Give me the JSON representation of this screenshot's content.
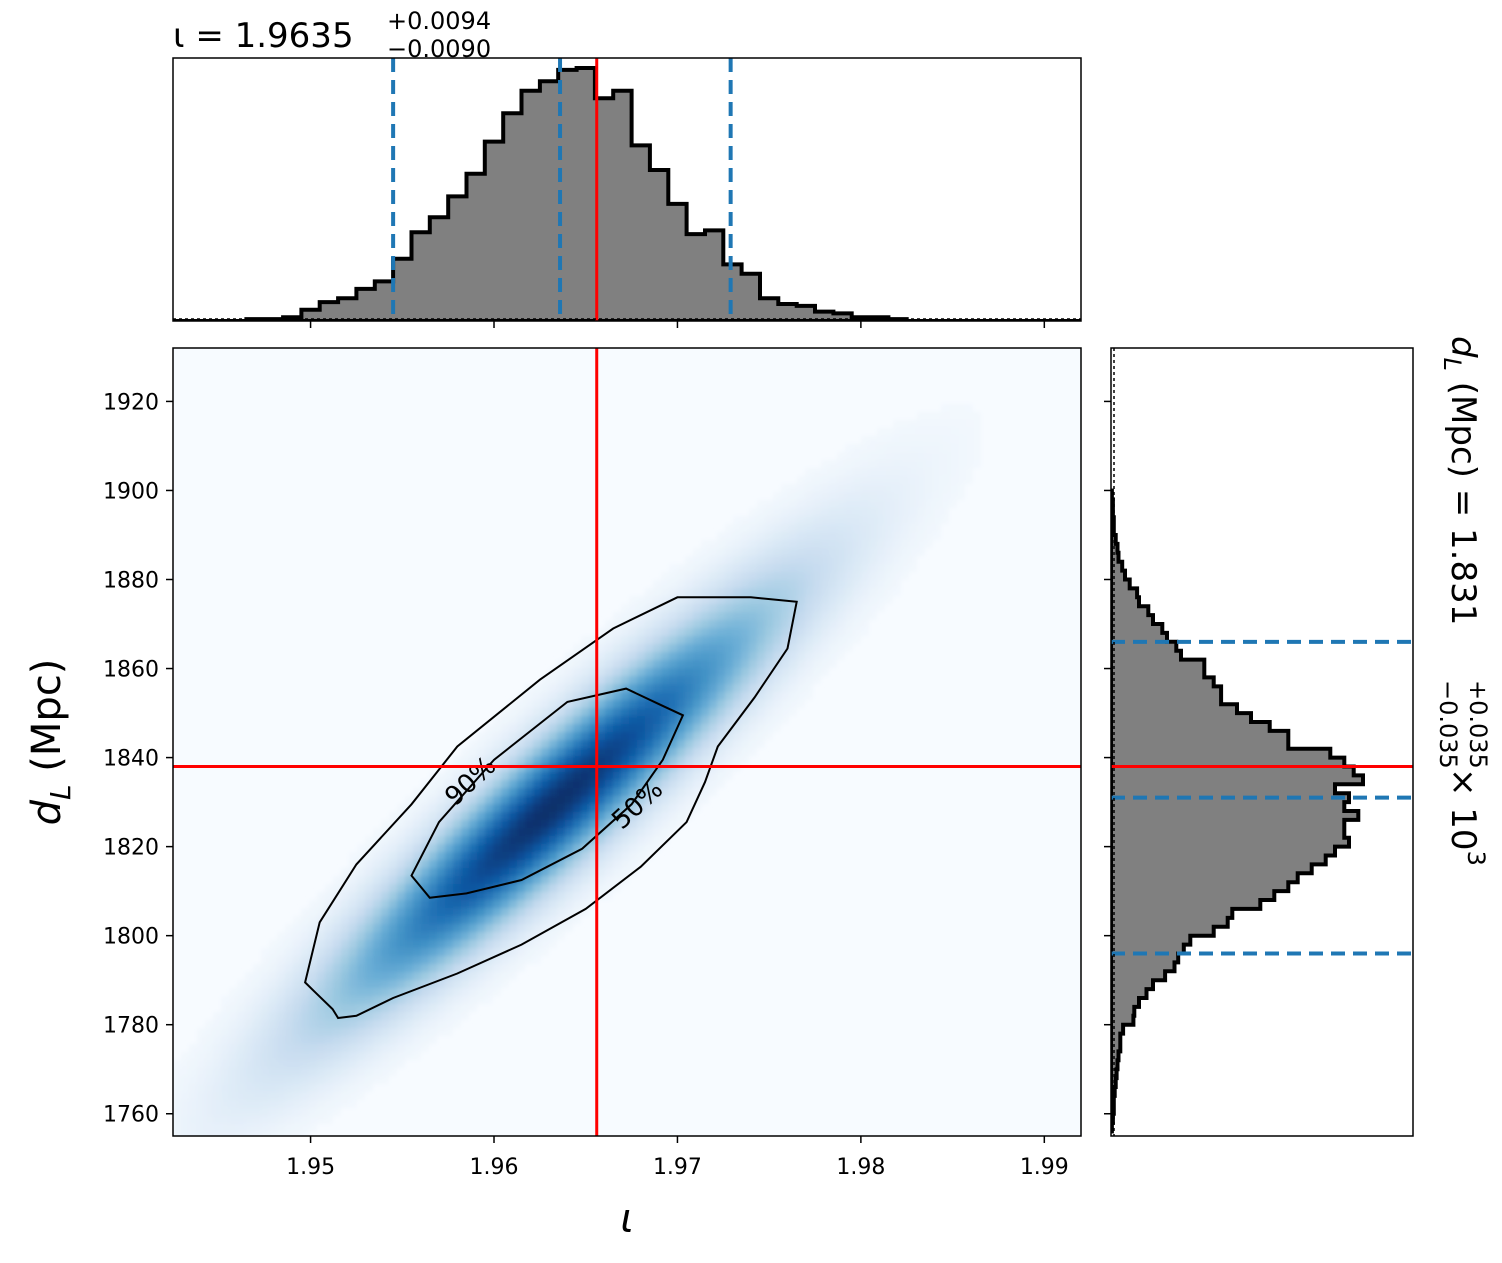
{
  "chart_data": {
    "type": "corner",
    "x_param": {
      "axis_label": "ι",
      "range": [
        1.9425,
        1.992
      ],
      "ticks": [
        1.95,
        1.96,
        1.97,
        1.98,
        1.99
      ],
      "tick_labels": [
        "1.95",
        "1.96",
        "1.97",
        "1.98",
        "1.99"
      ],
      "title_prefix": "ι = 1.9635",
      "title_plus": "+0.0094",
      "title_minus": "−0.0090",
      "quantiles": [
        1.9545,
        1.9636,
        1.9729
      ],
      "injected": 1.9656,
      "hist_edges": [
        1.9425,
        1.9435,
        1.9445,
        1.9455,
        1.9465,
        1.9475,
        1.9485,
        1.9495,
        1.9505,
        1.9515,
        1.9525,
        1.9535,
        1.9545,
        1.9555,
        1.9565,
        1.9575,
        1.9585,
        1.9595,
        1.9605,
        1.9615,
        1.9625,
        1.9635,
        1.9645,
        1.9655,
        1.9665,
        1.9675,
        1.9685,
        1.9695,
        1.9705,
        1.9715,
        1.9725,
        1.9735,
        1.9745,
        1.9755,
        1.9765,
        1.9775,
        1.9785,
        1.9795,
        1.9805,
        1.9815,
        1.9825,
        1.9835,
        1.9845,
        1.9855,
        1.9865,
        1.9875,
        1.9885,
        1.9895,
        1.9905,
        1.9915,
        1.992
      ],
      "hist_counts": [
        0,
        0,
        0,
        0,
        1,
        1,
        2,
        6,
        10,
        12,
        17,
        21,
        33,
        47,
        55,
        66,
        78,
        95,
        110,
        122,
        127,
        133,
        134,
        118,
        122,
        93,
        80,
        62,
        46,
        48,
        30,
        25,
        12,
        9,
        8,
        5,
        4,
        2,
        2,
        1,
        0,
        0,
        0,
        0,
        0,
        0,
        0,
        0,
        0,
        0
      ]
    },
    "y_param": {
      "axis_label": "d",
      "axis_label_sub": "L",
      "axis_label_unit": "(Mpc)",
      "range": [
        1755,
        1932
      ],
      "ticks": [
        1760,
        1780,
        1800,
        1820,
        1840,
        1860,
        1880,
        1900,
        1920
      ],
      "tick_labels": [
        "1760",
        "1780",
        "1800",
        "1820",
        "1840",
        "1860",
        "1880",
        "1900",
        "1920"
      ],
      "title_prefix": "(Mpc) = 1.831",
      "title_plus": "+0.035",
      "title_minus": "−0.035",
      "title_suffix": "× 10",
      "title_exp": "3",
      "quantiles": [
        1796,
        1831,
        1866
      ],
      "injected": 1838,
      "hist_edges": [
        1756,
        1758,
        1760,
        1762,
        1764,
        1766,
        1768,
        1770,
        1772,
        1774,
        1776,
        1778,
        1780,
        1782,
        1784,
        1786,
        1788,
        1790,
        1792,
        1794,
        1796,
        1798,
        1800,
        1802,
        1804,
        1806,
        1808,
        1810,
        1812,
        1814,
        1816,
        1818,
        1820,
        1822,
        1824,
        1826,
        1828,
        1830,
        1832,
        1834,
        1836,
        1838,
        1840,
        1842,
        1844,
        1846,
        1848,
        1850,
        1852,
        1854,
        1856,
        1858,
        1860,
        1862,
        1864,
        1866,
        1868,
        1870,
        1872,
        1874,
        1876,
        1878,
        1880,
        1882,
        1884,
        1886,
        1888,
        1890,
        1892,
        1894,
        1896,
        1898,
        1900
      ],
      "hist_counts": [
        1,
        2,
        3,
        3,
        4,
        5,
        6,
        7,
        8,
        10,
        10,
        13,
        24,
        25,
        30,
        38,
        45,
        58,
        68,
        72,
        78,
        85,
        110,
        125,
        130,
        160,
        175,
        190,
        200,
        215,
        230,
        240,
        255,
        250,
        250,
        265,
        250,
        255,
        240,
        270,
        260,
        250,
        235,
        190,
        190,
        170,
        150,
        135,
        118,
        118,
        110,
        100,
        100,
        75,
        70,
        60,
        55,
        45,
        40,
        30,
        28,
        20,
        15,
        12,
        8,
        7,
        5,
        3,
        3,
        2,
        2,
        1
      ]
    },
    "density": {
      "colormap": "Blues",
      "center": [
        1.9632,
        1.829
      ],
      "contour_labels": [
        "90%",
        "50%"
      ],
      "contour_90": [
        [
          1.9515,
          1.7815
        ],
        [
          1.9525,
          1.782
        ],
        [
          1.9545,
          1.786
        ],
        [
          1.958,
          1.7915
        ],
        [
          1.9615,
          1.798
        ],
        [
          1.965,
          1.806
        ],
        [
          1.968,
          1.8155
        ],
        [
          1.9705,
          1.8255
        ],
        [
          1.9715,
          1.8345
        ],
        [
          1.9722,
          1.8425
        ],
        [
          1.9742,
          1.8535
        ],
        [
          1.976,
          1.8645
        ],
        [
          1.9765,
          1.875
        ],
        [
          1.974,
          1.876
        ],
        [
          1.97,
          1.876
        ],
        [
          1.9665,
          1.869
        ],
        [
          1.9625,
          1.8575
        ],
        [
          1.958,
          1.8425
        ],
        [
          1.9555,
          1.8295
        ],
        [
          1.9525,
          1.816
        ],
        [
          1.9505,
          1.803
        ],
        [
          1.9497,
          1.7895
        ],
        [
          1.9502,
          1.7875
        ],
        [
          1.9512,
          1.7835
        ]
      ],
      "contour_50": [
        [
          1.9565,
          1.8085
        ],
        [
          1.9585,
          1.8095
        ],
        [
          1.9615,
          1.8125
        ],
        [
          1.9648,
          1.8195
        ],
        [
          1.9675,
          1.8295
        ],
        [
          1.9692,
          1.8395
        ],
        [
          1.9703,
          1.8495
        ],
        [
          1.969,
          1.852
        ],
        [
          1.9672,
          1.8555
        ],
        [
          1.964,
          1.8525
        ],
        [
          1.96,
          1.8395
        ],
        [
          1.957,
          1.8255
        ],
        [
          1.9555,
          1.8135
        ]
      ],
      "contour_90_m": [
        1.9697,
        1.981
      ],
      "contour_50_m": [
        1.97,
        1.9811
      ]
    },
    "colors": {
      "hist_fill": "#808080",
      "hist_edge": "#000000",
      "quantile": "#1f77b4",
      "injected": "#ff0000",
      "contour": "#000000"
    },
    "grid": false,
    "legend": "none"
  }
}
